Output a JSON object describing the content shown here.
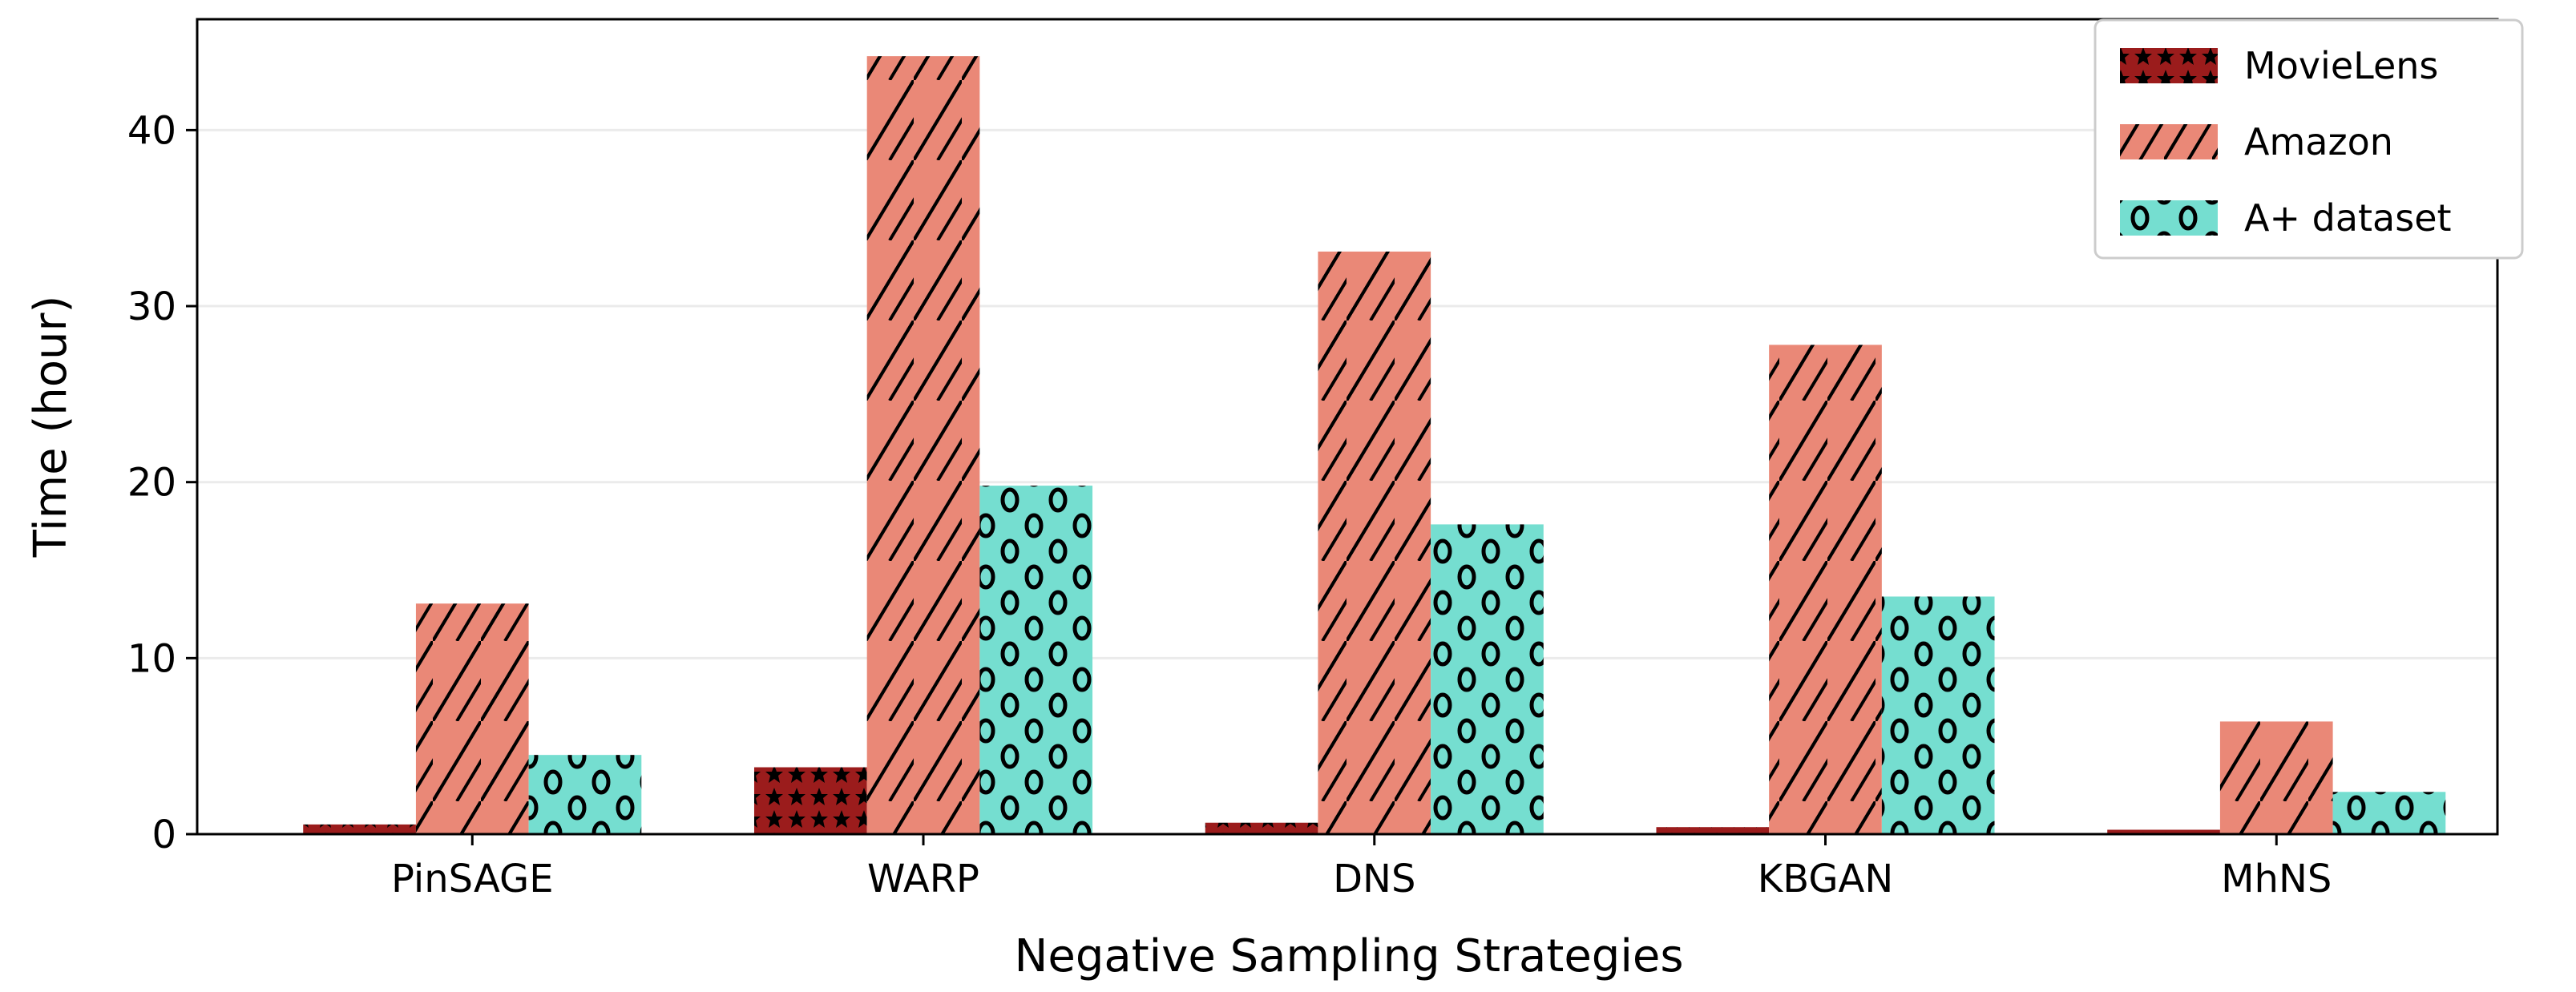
{
  "chart_data": {
    "type": "bar",
    "title": "",
    "xlabel": "Negative Sampling Strategies",
    "ylabel": "Time (hour)",
    "categories": [
      "PinSAGE",
      "WARP",
      "DNS",
      "KBGAN",
      "MhNS"
    ],
    "series": [
      {
        "name": "MovieLens",
        "color": "#9B1C1C",
        "hatch": "stars",
        "values": [
          0.55,
          3.8,
          0.65,
          0.4,
          0.25
        ]
      },
      {
        "name": "Amazon",
        "color": "#EA8877",
        "hatch": "diagonal",
        "values": [
          13.1,
          44.2,
          33.1,
          27.8,
          6.4
        ]
      },
      {
        "name": "A+ dataset",
        "color": "#75DED0",
        "hatch": "circles",
        "values": [
          4.5,
          19.8,
          17.6,
          13.5,
          2.4
        ]
      }
    ],
    "yticks": [
      0,
      10,
      20,
      30,
      40
    ],
    "ylim": [
      0,
      46.3
    ],
    "xlim": [
      -0.61,
      4.49
    ],
    "grid": "horizontal",
    "legend_position": "top-right"
  }
}
